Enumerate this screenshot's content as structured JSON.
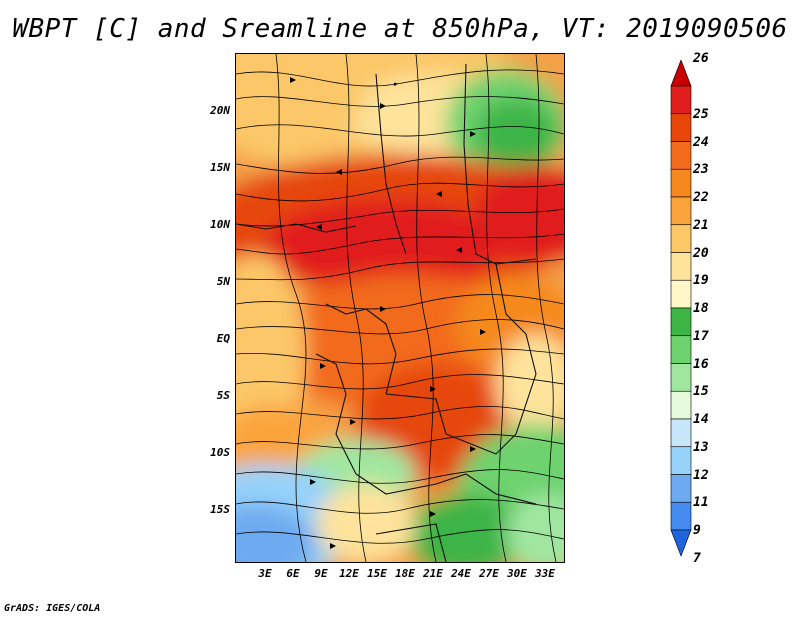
{
  "title": "WBPT [C] and Sreamline at 850hPa, VT: 2019090506",
  "footer": "GrADS: IGES/COLA",
  "latitude_labels": [
    "20N",
    "15N",
    "10N",
    "5N",
    "EQ",
    "5S",
    "10S",
    "15S"
  ],
  "longitude_labels": [
    "3E",
    "6E",
    "9E",
    "12E",
    "15E",
    "18E",
    "21E",
    "24E",
    "27E",
    "30E",
    "33E"
  ],
  "colorbar": {
    "labels": [
      "26",
      "25",
      "24",
      "23",
      "22",
      "21",
      "20",
      "19",
      "18",
      "17",
      "16",
      "15",
      "14",
      "13",
      "12",
      "11",
      "9",
      "7"
    ],
    "colors": [
      "#c80000",
      "#e11e1e",
      "#e6460a",
      "#f26b1c",
      "#f5891e",
      "#fba43c",
      "#fbc767",
      "#fde39b",
      "#fff7c8",
      "#3cb446",
      "#6ed26e",
      "#a0e6a0",
      "#e6fadc",
      "#c8e6fa",
      "#96d2fa",
      "#6eaaf0",
      "#468cf0",
      "#1e64dc"
    ]
  }
}
